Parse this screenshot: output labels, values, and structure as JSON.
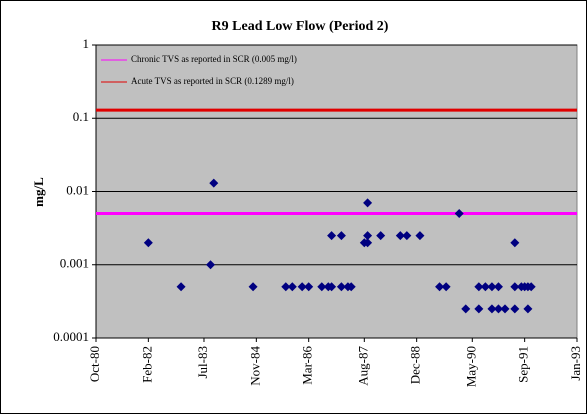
{
  "chart_data": {
    "type": "scatter",
    "title": "R9 Lead Low Flow (Period 2)",
    "y_label": "mg/L",
    "log_y": true,
    "grid": true,
    "color": "#000080",
    "x": [
      "1982-02",
      "1982-12",
      "1983-09",
      "1983-10",
      "1984-10",
      "1985-08",
      "1985-10",
      "1986-01",
      "1986-03",
      "1986-07",
      "1986-09",
      "1986-10",
      "1986-10",
      "1987-01",
      "1987-01",
      "1987-03",
      "1987-04",
      "1987-08",
      "1987-09",
      "1987-09",
      "1987-09",
      "1988-01",
      "1988-07",
      "1988-09",
      "1989-01",
      "1989-07",
      "1989-09",
      "1990-01",
      "1990-03",
      "1990-07",
      "1990-07",
      "1990-09",
      "1990-11",
      "1990-11",
      "1991-01",
      "1991-01",
      "1991-03",
      "1991-06",
      "1991-06",
      "1991-06",
      "1991-08",
      "1991-09",
      "1991-10",
      "1991-10",
      "1991-11"
    ],
    "values": [
      0.002,
      0.0005,
      0.001,
      0.013,
      0.0005,
      0.0005,
      0.0005,
      0.0005,
      0.0005,
      0.0005,
      0.0005,
      0.0005,
      0.0025,
      0.0025,
      0.0005,
      0.0005,
      0.0005,
      0.002,
      0.007,
      0.0025,
      0.002,
      0.0025,
      0.0025,
      0.0025,
      0.0025,
      0.0005,
      0.0005,
      0.005,
      0.00025,
      0.0005,
      0.00025,
      0.0005,
      0.00025,
      0.0005,
      0.0005,
      0.00025,
      0.00025,
      0.00025,
      0.002,
      0.0005,
      0.0005,
      0.0005,
      0.00025,
      0.0005,
      0.0005
    ],
    "reference_lines": [
      {
        "name": "Chronic TVS as reported in SCR (0.005 mg/l)",
        "color": "#ff00ff",
        "value": 0.005
      },
      {
        "name": "Acute TVS as reported in SCR (0.1289 mg/l)",
        "color": "#e00000",
        "value": 0.1289
      }
    ],
    "xlim": [
      "1980-10",
      "1993-01"
    ],
    "xticks": [
      {
        "value": "1980-10",
        "label": "Oct-80"
      },
      {
        "value": "1982-02",
        "label": "Feb-82"
      },
      {
        "value": "1983-07",
        "label": "Jul-83"
      },
      {
        "value": "1984-11",
        "label": "Nov-84"
      },
      {
        "value": "1986-03",
        "label": "Mar-86"
      },
      {
        "value": "1987-08",
        "label": "Aug-87"
      },
      {
        "value": "1988-12",
        "label": "Dec-88"
      },
      {
        "value": "1990-05",
        "label": "May-90"
      },
      {
        "value": "1991-09",
        "label": "Sep-91"
      },
      {
        "value": "1993-01",
        "label": "Jan-93"
      }
    ],
    "ylim": [
      0.0001,
      1
    ],
    "yticks": [
      0.0001,
      0.001,
      0.01,
      0.1,
      1
    ]
  }
}
